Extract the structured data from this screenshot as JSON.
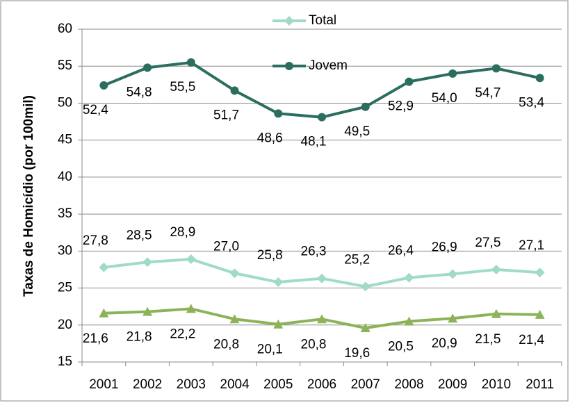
{
  "chart_data": {
    "type": "line",
    "ylabel": "Taxas de Homicídio (por 100mil)",
    "categories": [
      "2001",
      "2002",
      "2003",
      "2004",
      "2005",
      "2006",
      "2007",
      "2008",
      "2009",
      "2010",
      "2011"
    ],
    "series": [
      {
        "name": "Total",
        "color": "#9fdcc3",
        "marker": "diamond",
        "values": [
          27.8,
          28.5,
          28.9,
          27.0,
          25.8,
          26.3,
          25.2,
          26.4,
          26.9,
          27.5,
          27.1
        ],
        "value_labels": [
          "27,8",
          "28,5",
          "28,9",
          "27,0",
          "25,8",
          "26,3",
          "25,2",
          "26,4",
          "26,9",
          "27,5",
          "27,1"
        ]
      },
      {
        "name": "Jovem",
        "color": "#2b6e5f",
        "marker": "circle",
        "values": [
          52.4,
          54.8,
          55.5,
          51.7,
          48.6,
          48.1,
          49.5,
          52.9,
          54.0,
          54.7,
          53.4
        ],
        "value_labels": [
          "52,4",
          "54,8",
          "55,5",
          "51,7",
          "48,6",
          "48,1",
          "49,5",
          "52,9",
          "54,0",
          "54,7",
          "53,4"
        ]
      },
      {
        "color": "#8db359",
        "marker": "triangle",
        "values": [
          21.6,
          21.8,
          22.2,
          20.8,
          20.1,
          20.8,
          19.6,
          20.5,
          20.9,
          21.5,
          21.4
        ],
        "value_labels": [
          "21,6",
          "21,8",
          "22,2",
          "20,8",
          "20,1",
          "20,8",
          "19,6",
          "20,5",
          "20,9",
          "21,5",
          "21,4"
        ]
      }
    ],
    "ylim": [
      15,
      60
    ],
    "yticks": [
      15,
      20,
      25,
      30,
      35,
      40,
      45,
      50,
      55,
      60
    ],
    "grid": true
  }
}
